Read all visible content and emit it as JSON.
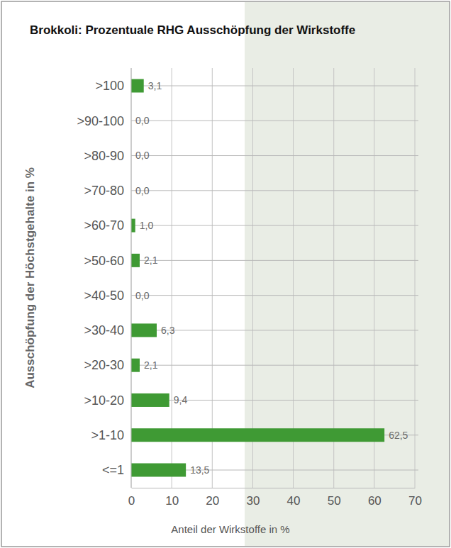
{
  "chart_data": {
    "type": "bar",
    "orientation": "horizontal",
    "title": "Brokkoli: Prozentuale RHG Ausschöpfung der Wirkstoffe",
    "x_label": "Anteil der Wirkstoffe in %",
    "y_label": "Ausschöpfung der Höchstgehalte in %",
    "categories": [
      ">100",
      ">90-100",
      ">80-90",
      ">70-80",
      ">60-70",
      ">50-60",
      ">40-50",
      ">30-40",
      ">20-30",
      ">10-20",
      ">1-10",
      "<=1"
    ],
    "values": [
      3.1,
      0.0,
      0.0,
      0.0,
      1.0,
      2.1,
      0.0,
      6.3,
      2.1,
      9.4,
      62.5,
      13.5
    ],
    "value_labels": [
      "3,1",
      "0,0",
      "0,0",
      "0,0",
      "1,0",
      "2,1",
      "0,0",
      "6,3",
      "2,1",
      "9,4",
      "62,5",
      "13,5"
    ],
    "data_labels": true,
    "color": "#3f9a34",
    "xlim": [
      0,
      70
    ],
    "xticks": [
      0,
      10,
      20,
      30,
      40,
      50,
      60,
      70
    ],
    "grid": true
  }
}
